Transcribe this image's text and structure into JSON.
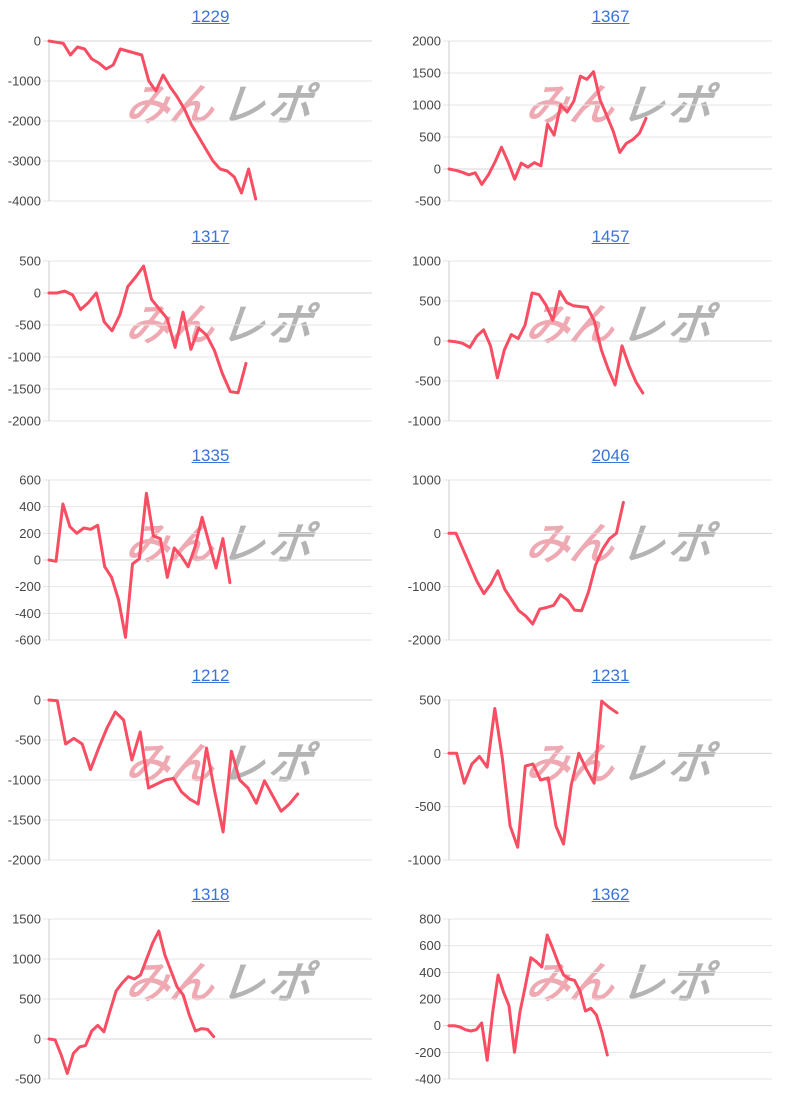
{
  "page": {
    "background": "#ffffff",
    "grid": "2x5 small multiples"
  },
  "watermark": {
    "pink_text": "みん",
    "gray_text": "レポ",
    "pink_color": "#efa9b2",
    "gray_color": "#a8a8a8"
  },
  "style": {
    "line_color": "#f94d63",
    "grid_color": "#e6e6e6",
    "zero_line_color": "#d6d6d6",
    "axis_line_color": "#cdcdcd",
    "tick_label_color": "#474747",
    "title_color": "#3a73d9"
  },
  "chart_data": [
    {
      "type": "line",
      "title": "1229",
      "xlabel": "",
      "ylabel": "",
      "ylim": [
        -4000,
        0
      ],
      "yticks": [
        0,
        -1000,
        -2000,
        -3000,
        -4000
      ],
      "legend": "none",
      "x_span_frac": 0.64,
      "values": [
        0,
        -30,
        -60,
        -350,
        -150,
        -200,
        -450,
        -550,
        -700,
        -600,
        -200,
        -250,
        -300,
        -350,
        -1000,
        -1250,
        -850,
        -1150,
        -1400,
        -1700,
        -2100,
        -2400,
        -2700,
        -3000,
        -3200,
        -3250,
        -3400,
        -3800,
        -3200,
        -3950
      ]
    },
    {
      "type": "line",
      "title": "1367",
      "xlabel": "",
      "ylabel": "",
      "ylim": [
        -500,
        2000
      ],
      "yticks": [
        2000,
        1500,
        1000,
        500,
        0,
        -500
      ],
      "legend": "none",
      "x_span_frac": 0.61,
      "values": [
        0,
        -20,
        -50,
        -90,
        -60,
        -240,
        -90,
        110,
        340,
        110,
        -160,
        90,
        30,
        100,
        50,
        700,
        530,
        1000,
        890,
        1060,
        1450,
        1400,
        1520,
        1080,
        840,
        590,
        260,
        400,
        460,
        560,
        790
      ]
    },
    {
      "type": "line",
      "title": "1317",
      "xlabel": "",
      "ylabel": "",
      "ylim": [
        -2000,
        500
      ],
      "yticks": [
        500,
        0,
        -500,
        -1000,
        -1500,
        -2000
      ],
      "legend": "none",
      "x_span_frac": 0.61,
      "values": [
        0,
        0,
        30,
        -30,
        -260,
        -150,
        0,
        -450,
        -590,
        -340,
        100,
        250,
        420,
        -100,
        -250,
        -400,
        -850,
        -300,
        -880,
        -550,
        -660,
        -900,
        -1260,
        -1540,
        -1560,
        -1100
      ]
    },
    {
      "type": "line",
      "title": "1457",
      "xlabel": "",
      "ylabel": "",
      "ylim": [
        -1000,
        1000
      ],
      "yticks": [
        1000,
        500,
        0,
        -500,
        -1000
      ],
      "legend": "none",
      "x_span_frac": 0.6,
      "values": [
        0,
        -10,
        -30,
        -80,
        60,
        140,
        -60,
        -460,
        -110,
        80,
        30,
        200,
        600,
        580,
        450,
        260,
        620,
        480,
        440,
        430,
        420,
        250,
        -110,
        -350,
        -550,
        -60,
        -310,
        -510,
        -650
      ]
    },
    {
      "type": "line",
      "title": "1335",
      "xlabel": "",
      "ylabel": "",
      "ylim": [
        -600,
        600
      ],
      "yticks": [
        600,
        400,
        200,
        0,
        -200,
        -400,
        -600
      ],
      "legend": "none",
      "x_span_frac": 0.56,
      "values": [
        0,
        -10,
        420,
        250,
        200,
        240,
        230,
        260,
        -50,
        -130,
        -300,
        -580,
        -30,
        10,
        500,
        180,
        160,
        -130,
        90,
        30,
        -50,
        100,
        320,
        130,
        -60,
        160,
        -170
      ]
    },
    {
      "type": "line",
      "title": "2046",
      "xlabel": "",
      "ylabel": "",
      "ylim": [
        -2000,
        1000
      ],
      "yticks": [
        1000,
        0,
        -1000,
        -2000
      ],
      "legend": "none",
      "x_span_frac": 0.54,
      "values": [
        0,
        0,
        -300,
        -600,
        -900,
        -1130,
        -950,
        -700,
        -1050,
        -1250,
        -1450,
        -1550,
        -1700,
        -1420,
        -1390,
        -1350,
        -1150,
        -1250,
        -1440,
        -1450,
        -1100,
        -600,
        -300,
        -100,
        0,
        580
      ]
    },
    {
      "type": "line",
      "title": "1212",
      "xlabel": "",
      "ylabel": "",
      "ylim": [
        -2000,
        0
      ],
      "yticks": [
        0,
        -500,
        -1000,
        -1500,
        -2000
      ],
      "legend": "none",
      "x_span_frac": 0.77,
      "values": [
        0,
        -10,
        -550,
        -480,
        -550,
        -870,
        -600,
        -350,
        -150,
        -250,
        -750,
        -400,
        -1100,
        -1050,
        -1000,
        -980,
        -1150,
        -1240,
        -1300,
        -600,
        -1150,
        -1650,
        -640,
        -1000,
        -1100,
        -1290,
        -1010,
        -1200,
        -1390,
        -1300,
        -1175
      ]
    },
    {
      "type": "line",
      "title": "1231",
      "xlabel": "",
      "ylabel": "",
      "ylim": [
        -1000,
        500
      ],
      "yticks": [
        500,
        0,
        -500,
        -1000
      ],
      "legend": "none",
      "x_span_frac": 0.52,
      "values": [
        0,
        0,
        -280,
        -100,
        -30,
        -130,
        420,
        -50,
        -680,
        -880,
        -120,
        -100,
        -250,
        -230,
        -680,
        -850,
        -300,
        0,
        -150,
        -280,
        490,
        430,
        380
      ]
    },
    {
      "type": "line",
      "title": "1318",
      "xlabel": "",
      "ylabel": "",
      "ylim": [
        -500,
        1500
      ],
      "yticks": [
        1500,
        1000,
        500,
        0,
        -500
      ],
      "legend": "none",
      "x_span_frac": 0.51,
      "values": [
        0,
        -10,
        -200,
        -430,
        -180,
        -100,
        -80,
        100,
        170,
        90,
        350,
        600,
        700,
        780,
        750,
        800,
        1000,
        1200,
        1350,
        1050,
        850,
        650,
        550,
        300,
        100,
        130,
        120,
        30
      ]
    },
    {
      "type": "line",
      "title": "1362",
      "xlabel": "",
      "ylabel": "",
      "ylim": [
        -400,
        800
      ],
      "yticks": [
        800,
        600,
        400,
        200,
        0,
        -200,
        -400
      ],
      "legend": "none",
      "x_span_frac": 0.49,
      "values": [
        0,
        0,
        -10,
        -30,
        -40,
        -30,
        20,
        -260,
        100,
        380,
        250,
        150,
        -200,
        100,
        300,
        510,
        480,
        440,
        680,
        580,
        470,
        380,
        350,
        340,
        260,
        110,
        130,
        80,
        -50,
        -220
      ]
    }
  ]
}
